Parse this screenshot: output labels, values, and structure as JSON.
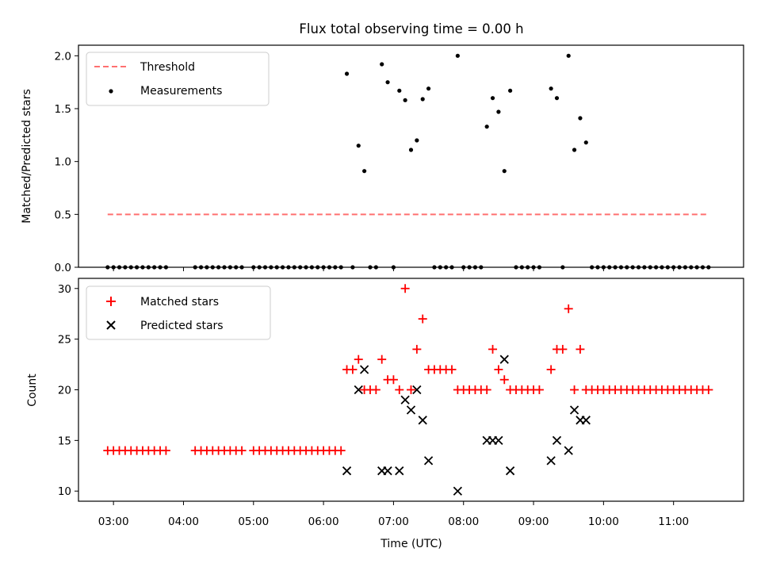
{
  "title": "Flux total observing time = 0.00 h",
  "chart_data": [
    {
      "type": "scatter",
      "ylabel": "Matched/Predicted stars",
      "xlabel": "",
      "xlim": [
        "02:30",
        "12:00"
      ],
      "ylim": [
        0,
        2.1
      ],
      "yticks": [
        0.0,
        0.5,
        1.0,
        1.5,
        2.0
      ],
      "ytick_labels": [
        "0.0",
        "0.5",
        "1.0",
        "1.5",
        "2.0"
      ],
      "legend_position": "upper-left",
      "series": [
        {
          "name": "Threshold",
          "kind": "line",
          "style": "dashed",
          "color": "#ff7070",
          "points": [
            [
              "02:55",
              0.5
            ],
            [
              "11:30",
              0.5
            ]
          ]
        },
        {
          "name": "Measurements",
          "kind": "scatter",
          "color": "#000000",
          "points": [
            [
              "02:55",
              0
            ],
            [
              "03:00",
              0
            ],
            [
              "03:05",
              0
            ],
            [
              "03:10",
              0
            ],
            [
              "03:15",
              0
            ],
            [
              "03:20",
              0
            ],
            [
              "03:25",
              0
            ],
            [
              "03:30",
              0
            ],
            [
              "03:35",
              0
            ],
            [
              "03:40",
              0
            ],
            [
              "03:45",
              0
            ],
            [
              "04:10",
              0
            ],
            [
              "04:15",
              0
            ],
            [
              "04:20",
              0
            ],
            [
              "04:25",
              0
            ],
            [
              "04:30",
              0
            ],
            [
              "04:35",
              0
            ],
            [
              "04:40",
              0
            ],
            [
              "04:45",
              0
            ],
            [
              "04:50",
              0
            ],
            [
              "05:00",
              0
            ],
            [
              "05:05",
              0
            ],
            [
              "05:10",
              0
            ],
            [
              "05:15",
              0
            ],
            [
              "05:20",
              0
            ],
            [
              "05:25",
              0
            ],
            [
              "05:30",
              0
            ],
            [
              "05:35",
              0
            ],
            [
              "05:40",
              0
            ],
            [
              "05:45",
              0
            ],
            [
              "05:50",
              0
            ],
            [
              "05:55",
              0
            ],
            [
              "06:00",
              0
            ],
            [
              "06:05",
              0
            ],
            [
              "06:10",
              0
            ],
            [
              "06:15",
              0
            ],
            [
              "06:20",
              1.83
            ],
            [
              "06:25",
              0
            ],
            [
              "06:30",
              1.15
            ],
            [
              "06:35",
              0.91
            ],
            [
              "06:40",
              0
            ],
            [
              "06:45",
              0
            ],
            [
              "06:50",
              1.92
            ],
            [
              "06:55",
              1.75
            ],
            [
              "07:00",
              0
            ],
            [
              "07:05",
              1.67
            ],
            [
              "07:10",
              1.58
            ],
            [
              "07:15",
              1.11
            ],
            [
              "07:20",
              1.2
            ],
            [
              "07:25",
              1.59
            ],
            [
              "07:30",
              1.69
            ],
            [
              "07:35",
              0
            ],
            [
              "07:40",
              0
            ],
            [
              "07:45",
              0
            ],
            [
              "07:50",
              0
            ],
            [
              "07:55",
              2.0
            ],
            [
              "08:00",
              0
            ],
            [
              "08:05",
              0
            ],
            [
              "08:10",
              0
            ],
            [
              "08:15",
              0
            ],
            [
              "08:20",
              1.33
            ],
            [
              "08:25",
              1.6
            ],
            [
              "08:30",
              1.47
            ],
            [
              "08:35",
              0.91
            ],
            [
              "08:40",
              1.67
            ],
            [
              "08:45",
              0
            ],
            [
              "08:50",
              0
            ],
            [
              "08:55",
              0
            ],
            [
              "09:00",
              0
            ],
            [
              "09:05",
              0
            ],
            [
              "09:15",
              1.69
            ],
            [
              "09:20",
              1.6
            ],
            [
              "09:25",
              0
            ],
            [
              "09:30",
              2.0
            ],
            [
              "09:35",
              1.11
            ],
            [
              "09:40",
              1.41
            ],
            [
              "09:45",
              1.18
            ],
            [
              "09:50",
              0
            ],
            [
              "09:55",
              0
            ],
            [
              "10:00",
              0
            ],
            [
              "10:05",
              0
            ],
            [
              "10:10",
              0
            ],
            [
              "10:15",
              0
            ],
            [
              "10:20",
              0
            ],
            [
              "10:25",
              0
            ],
            [
              "10:30",
              0
            ],
            [
              "10:35",
              0
            ],
            [
              "10:40",
              0
            ],
            [
              "10:45",
              0
            ],
            [
              "10:50",
              0
            ],
            [
              "10:55",
              0
            ],
            [
              "11:00",
              0
            ],
            [
              "11:05",
              0
            ],
            [
              "11:10",
              0
            ],
            [
              "11:15",
              0
            ],
            [
              "11:20",
              0
            ],
            [
              "11:25",
              0
            ],
            [
              "11:30",
              0
            ]
          ]
        }
      ]
    },
    {
      "type": "scatter",
      "ylabel": "Count",
      "xlabel": "Time (UTC)",
      "xlim": [
        "02:30",
        "12:00"
      ],
      "ylim": [
        9,
        31
      ],
      "yticks": [
        10,
        15,
        20,
        25,
        30
      ],
      "ytick_labels": [
        "10",
        "15",
        "20",
        "25",
        "30"
      ],
      "xticks": [
        "03:00",
        "04:00",
        "05:00",
        "06:00",
        "07:00",
        "08:00",
        "09:00",
        "10:00",
        "11:00"
      ],
      "xtick_labels": [
        "03:00",
        "04:00",
        "05:00",
        "06:00",
        "07:00",
        "08:00",
        "09:00",
        "10:00",
        "11:00"
      ],
      "legend_position": "upper-left",
      "series": [
        {
          "name": "Matched stars",
          "kind": "scatter",
          "marker": "plus",
          "color": "#ff0000",
          "points": [
            [
              "02:55",
              14
            ],
            [
              "03:00",
              14
            ],
            [
              "03:05",
              14
            ],
            [
              "03:10",
              14
            ],
            [
              "03:15",
              14
            ],
            [
              "03:20",
              14
            ],
            [
              "03:25",
              14
            ],
            [
              "03:30",
              14
            ],
            [
              "03:35",
              14
            ],
            [
              "03:40",
              14
            ],
            [
              "03:45",
              14
            ],
            [
              "04:10",
              14
            ],
            [
              "04:15",
              14
            ],
            [
              "04:20",
              14
            ],
            [
              "04:25",
              14
            ],
            [
              "04:30",
              14
            ],
            [
              "04:35",
              14
            ],
            [
              "04:40",
              14
            ],
            [
              "04:45",
              14
            ],
            [
              "04:50",
              14
            ],
            [
              "05:00",
              14
            ],
            [
              "05:05",
              14
            ],
            [
              "05:10",
              14
            ],
            [
              "05:15",
              14
            ],
            [
              "05:20",
              14
            ],
            [
              "05:25",
              14
            ],
            [
              "05:30",
              14
            ],
            [
              "05:35",
              14
            ],
            [
              "05:40",
              14
            ],
            [
              "05:45",
              14
            ],
            [
              "05:50",
              14
            ],
            [
              "05:55",
              14
            ],
            [
              "06:00",
              14
            ],
            [
              "06:05",
              14
            ],
            [
              "06:10",
              14
            ],
            [
              "06:15",
              14
            ],
            [
              "06:20",
              22
            ],
            [
              "06:25",
              22
            ],
            [
              "06:30",
              23
            ],
            [
              "06:35",
              20
            ],
            [
              "06:40",
              20
            ],
            [
              "06:45",
              20
            ],
            [
              "06:50",
              23
            ],
            [
              "06:55",
              21
            ],
            [
              "07:00",
              21
            ],
            [
              "07:05",
              20
            ],
            [
              "07:10",
              30
            ],
            [
              "07:15",
              20
            ],
            [
              "07:20",
              24
            ],
            [
              "07:25",
              27
            ],
            [
              "07:30",
              22
            ],
            [
              "07:35",
              22
            ],
            [
              "07:40",
              22
            ],
            [
              "07:45",
              22
            ],
            [
              "07:50",
              22
            ],
            [
              "07:55",
              20
            ],
            [
              "08:00",
              20
            ],
            [
              "08:05",
              20
            ],
            [
              "08:10",
              20
            ],
            [
              "08:15",
              20
            ],
            [
              "08:20",
              20
            ],
            [
              "08:25",
              24
            ],
            [
              "08:30",
              22
            ],
            [
              "08:35",
              21
            ],
            [
              "08:40",
              20
            ],
            [
              "08:45",
              20
            ],
            [
              "08:50",
              20
            ],
            [
              "08:55",
              20
            ],
            [
              "09:00",
              20
            ],
            [
              "09:05",
              20
            ],
            [
              "09:15",
              22
            ],
            [
              "09:20",
              24
            ],
            [
              "09:25",
              24
            ],
            [
              "09:30",
              28
            ],
            [
              "09:35",
              20
            ],
            [
              "09:40",
              24
            ],
            [
              "09:45",
              20
            ],
            [
              "09:50",
              20
            ],
            [
              "09:55",
              20
            ],
            [
              "10:00",
              20
            ],
            [
              "10:05",
              20
            ],
            [
              "10:10",
              20
            ],
            [
              "10:15",
              20
            ],
            [
              "10:20",
              20
            ],
            [
              "10:25",
              20
            ],
            [
              "10:30",
              20
            ],
            [
              "10:35",
              20
            ],
            [
              "10:40",
              20
            ],
            [
              "10:45",
              20
            ],
            [
              "10:50",
              20
            ],
            [
              "10:55",
              20
            ],
            [
              "11:00",
              20
            ],
            [
              "11:05",
              20
            ],
            [
              "11:10",
              20
            ],
            [
              "11:15",
              20
            ],
            [
              "11:20",
              20
            ],
            [
              "11:25",
              20
            ],
            [
              "11:30",
              20
            ]
          ]
        },
        {
          "name": "Predicted stars",
          "kind": "scatter",
          "marker": "x",
          "color": "#000000",
          "points": [
            [
              "06:20",
              12
            ],
            [
              "06:30",
              20
            ],
            [
              "06:35",
              22
            ],
            [
              "06:50",
              12
            ],
            [
              "06:55",
              12
            ],
            [
              "07:05",
              12
            ],
            [
              "07:10",
              19
            ],
            [
              "07:15",
              18
            ],
            [
              "07:20",
              20
            ],
            [
              "07:25",
              17
            ],
            [
              "07:30",
              13
            ],
            [
              "07:55",
              10
            ],
            [
              "08:20",
              15
            ],
            [
              "08:25",
              15
            ],
            [
              "08:30",
              15
            ],
            [
              "08:35",
              23
            ],
            [
              "08:40",
              12
            ],
            [
              "09:15",
              13
            ],
            [
              "09:20",
              15
            ],
            [
              "09:30",
              14
            ],
            [
              "09:35",
              18
            ],
            [
              "09:40",
              17
            ],
            [
              "09:45",
              17
            ]
          ]
        }
      ]
    }
  ]
}
